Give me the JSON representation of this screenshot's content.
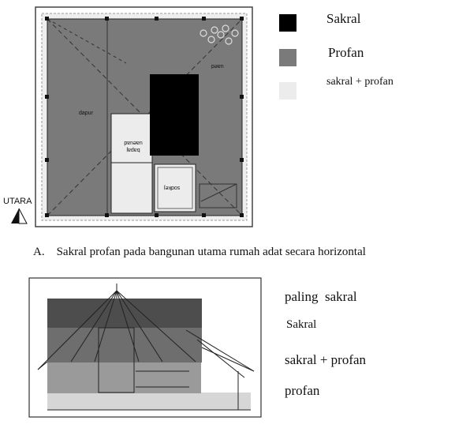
{
  "plan": {
    "room_left_text": "dapur",
    "room_right_text": "uaed",
    "room_center_text": "bapaj uaeuad",
    "room_bottom_text": "sodkej",
    "north_label": "UTARA",
    "caption": "A.    Sakral profan pada bangunan utama rumah adat secara horizontal",
    "legend": [
      {
        "label": "Sakral",
        "color": "#000000"
      },
      {
        "label": "Profan",
        "color": "#7a7a7a"
      },
      {
        "label": "sakral + profan",
        "color": "#ececec"
      }
    ]
  },
  "elevation": {
    "labels": [
      "paling  sakral",
      "Sakral",
      "sakral + profan",
      "profan"
    ],
    "colors": {
      "paling_sakral": "#4d4d4d",
      "sakral": "#6e6e6e",
      "sakral_profan": "#9a9a9a",
      "profan": "#d6d6d6"
    }
  }
}
